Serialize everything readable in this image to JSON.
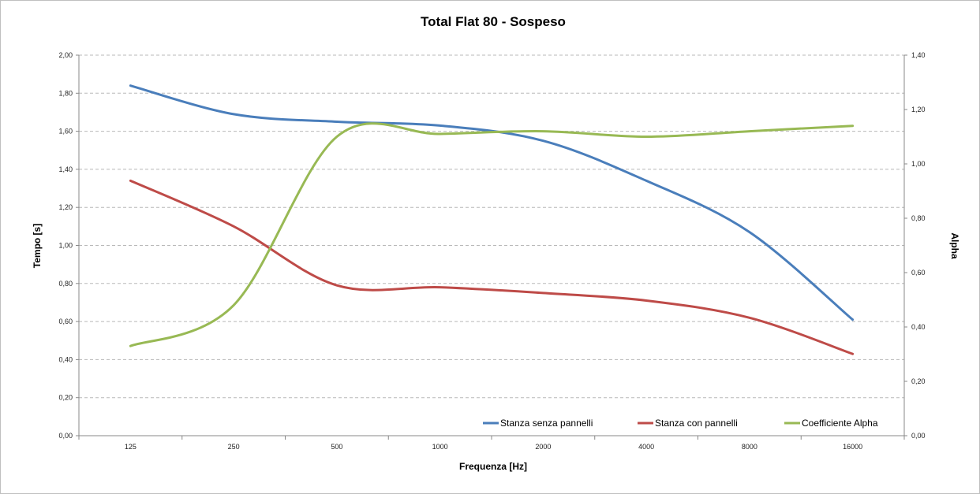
{
  "chart_data": {
    "type": "line",
    "title": "Total Flat 80 - Sospeso",
    "xlabel": "Frequenza [Hz]",
    "ylabel": "Tempo [s]",
    "y2label": "Alpha",
    "categories": [
      "125",
      "250",
      "500",
      "1000",
      "2000",
      "4000",
      "8000",
      "16000"
    ],
    "ylim": [
      0,
      2.0
    ],
    "y2lim": [
      0,
      1.4
    ],
    "yticks": [
      "0,00",
      "0,20",
      "0,40",
      "0,60",
      "0,80",
      "1,00",
      "1,20",
      "1,40",
      "1,60",
      "1,80",
      "2,00"
    ],
    "y2ticks": [
      "0,00",
      "0,20",
      "0,40",
      "0,60",
      "0,80",
      "1,00",
      "1,20",
      "1,40"
    ],
    "grid": true,
    "legend_position": "bottom-right",
    "series": [
      {
        "name": "Stanza senza pannelli",
        "axis": "left",
        "color": "#4a7ebb",
        "values": [
          1.84,
          1.69,
          1.65,
          1.63,
          1.55,
          1.34,
          1.07,
          0.61
        ]
      },
      {
        "name": "Stanza con pannelli",
        "axis": "left",
        "color": "#be4b48",
        "values": [
          1.34,
          1.1,
          0.79,
          0.78,
          0.75,
          0.71,
          0.62,
          0.43
        ]
      },
      {
        "name": "Coefficiente Alpha",
        "axis": "right",
        "color": "#98b954",
        "values": [
          0.33,
          0.48,
          1.1,
          1.11,
          1.12,
          1.1,
          1.12,
          1.14
        ]
      }
    ]
  }
}
